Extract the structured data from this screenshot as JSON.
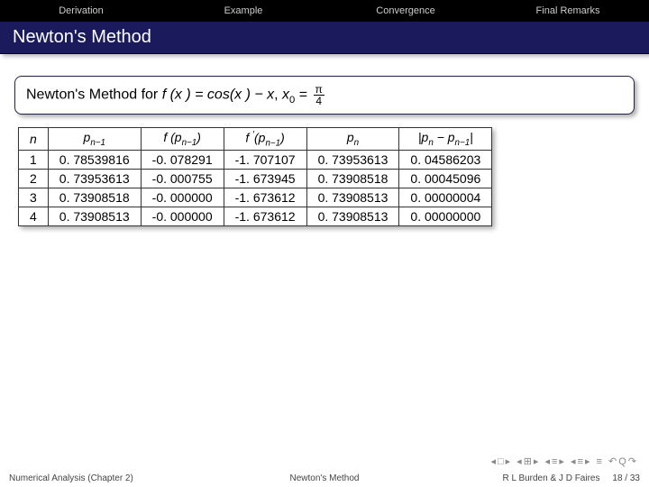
{
  "nav": {
    "items": [
      "Derivation",
      "Example",
      "Convergence",
      "Final Remarks"
    ]
  },
  "title": "Newton's Method",
  "block": {
    "prefix": "Newton's Method for ",
    "fx": "f (x ) = cos(x ) − x",
    "x0lhs": "x",
    "x0sub": "0",
    "eq": " = ",
    "pi_num": "π",
    "pi_den": "4"
  },
  "table": {
    "headers": {
      "n": "n",
      "pnm1": "p",
      "pnm1_sub": "n−1",
      "fp": "f (p",
      "fp_sub": "n−1",
      "fp_close": ")",
      "fpp": "f ",
      "fpp_sup": "′",
      "fpp_open": "(p",
      "fpp_sub": "n−1",
      "fpp_close": ")",
      "pn": "p",
      "pn_sub": "n",
      "err_open": "|p",
      "err_sub1": "n",
      "err_mid": " − p",
      "err_sub2": "n−1",
      "err_close": "|"
    },
    "rows": [
      {
        "n": "1",
        "pnm1": "0. 78539816",
        "fp": "-0. 078291",
        "fpp": "-1. 707107",
        "pn": "0. 73953613",
        "err": "0. 04586203"
      },
      {
        "n": "2",
        "pnm1": "0. 73953613",
        "fp": "-0. 000755",
        "fpp": "-1. 673945",
        "pn": "0. 73908518",
        "err": "0. 00045096"
      },
      {
        "n": "3",
        "pnm1": "0. 73908518",
        "fp": "-0. 000000",
        "fpp": "-1. 673612",
        "pn": "0. 73908513",
        "err": "0. 00000004"
      },
      {
        "n": "4",
        "pnm1": "0. 73908513",
        "fp": "-0. 000000",
        "fpp": "-1. 673612",
        "pn": "0. 73908513",
        "err": "0. 00000000"
      }
    ]
  },
  "footer": {
    "left": "Numerical Analysis (Chapter 2)",
    "center": "Newton's Method",
    "right_authors": "R L Burden & J D Faires",
    "right_page": "18 / 33"
  },
  "navicon_glyphs": "◂□▸ ◂⊞▸ ◂≡▸ ◂≡▸  ≡  ↶Q↷"
}
